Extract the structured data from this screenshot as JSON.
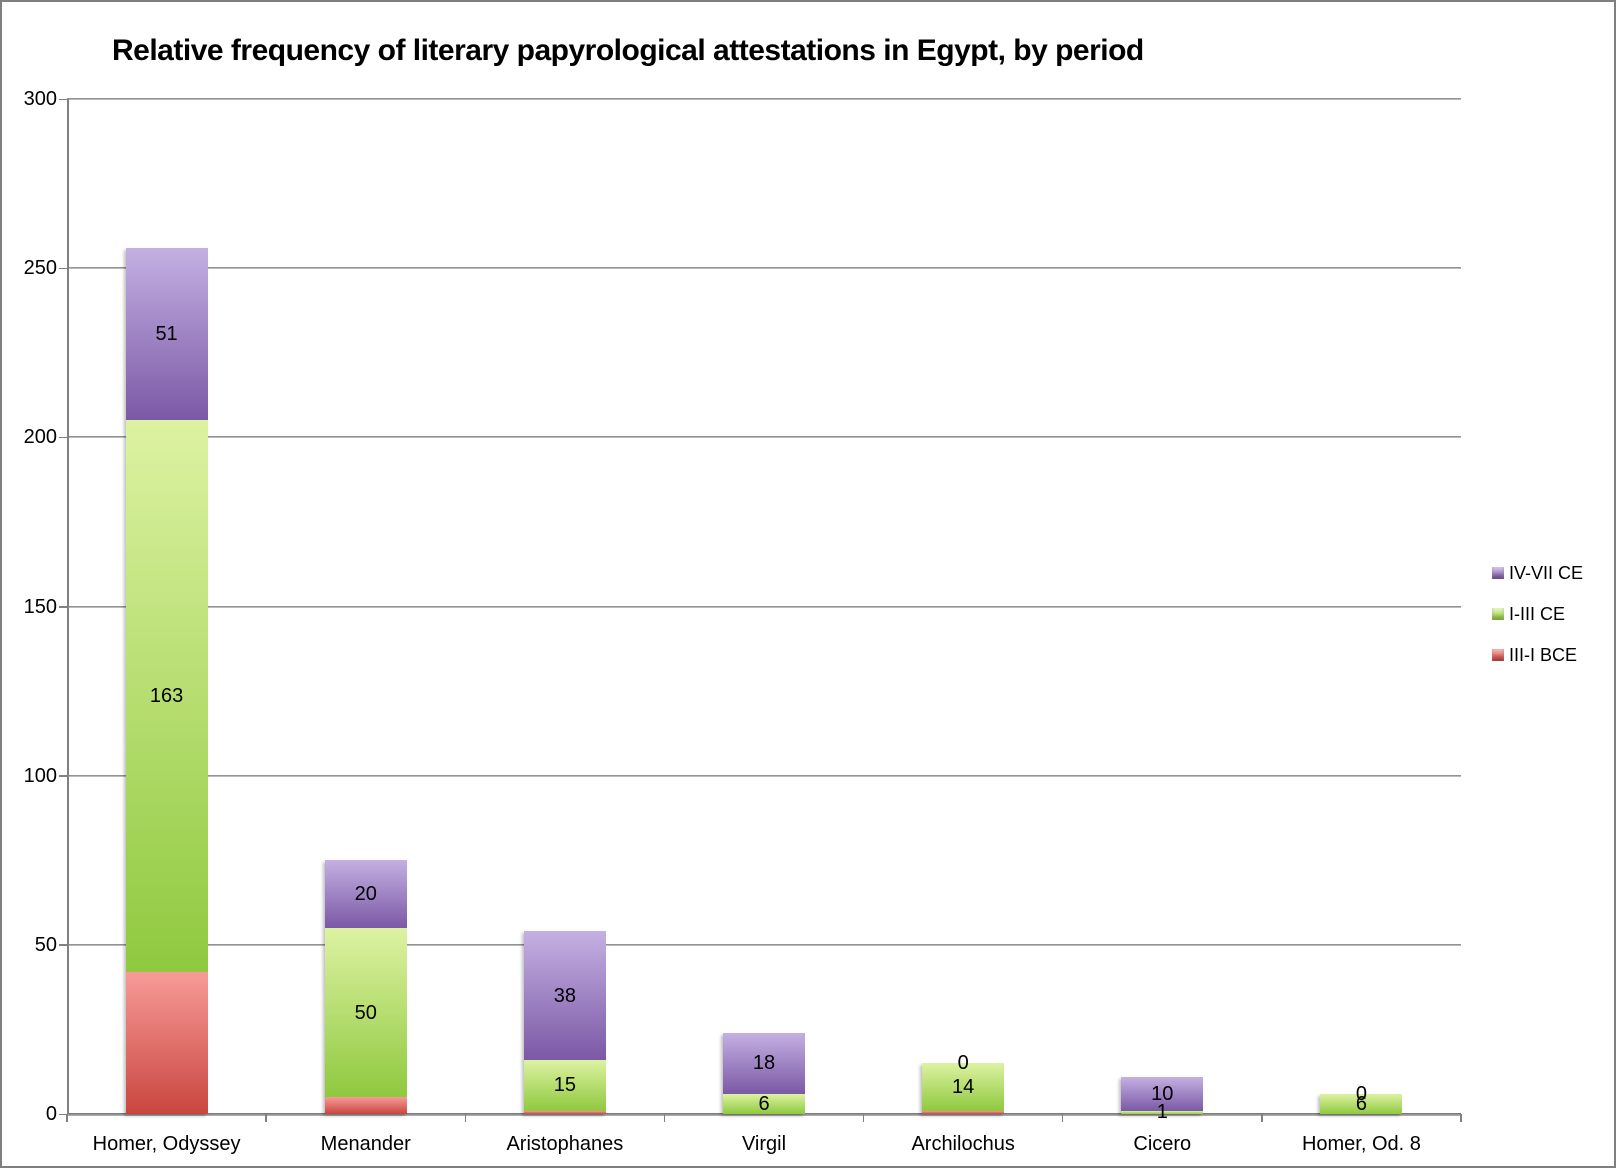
{
  "chart_data": {
    "type": "bar",
    "stacked": true,
    "title": "Relative frequency of literary papyrological attestations in Egypt, by period",
    "xlabel": "",
    "ylabel": "",
    "ylim": [
      0,
      300
    ],
    "ytick_step": 50,
    "yticks": [
      0,
      50,
      100,
      150,
      200,
      250,
      300
    ],
    "grid": true,
    "legend_position": "right",
    "categories": [
      "Homer, Odyssey",
      "Menander",
      "Aristophanes",
      "Virgil",
      "Archilochus",
      "Cicero",
      "Homer, Od. 8"
    ],
    "series": [
      {
        "name": "III-I BCE",
        "legend_color": "#d9534e",
        "color_top": "#f79b98",
        "color_bottom": "#c9463f",
        "values": [
          42,
          5,
          1,
          0,
          1,
          0,
          0
        ],
        "data_labels": [
          "",
          "",
          "",
          "",
          "",
          "",
          ""
        ]
      },
      {
        "name": "I-III CE",
        "legend_color": "#a8d358",
        "color_top": "#ddf2a2",
        "color_bottom": "#8fc93f",
        "values": [
          163,
          50,
          15,
          6,
          14,
          1,
          6
        ],
        "data_labels": [
          "163",
          "50",
          "15",
          "6",
          "14",
          "1",
          "6"
        ]
      },
      {
        "name": "IV-VII CE",
        "legend_color": "#8a6db4",
        "color_top": "#c4b0e2",
        "color_bottom": "#7b59a6",
        "values": [
          51,
          20,
          38,
          18,
          0,
          10,
          0
        ],
        "data_labels": [
          "51",
          "20",
          "38",
          "18",
          "0",
          "10",
          "0"
        ]
      }
    ],
    "legend_display_order": [
      "IV-VII CE",
      "I-III CE",
      "III-I BCE"
    ]
  }
}
